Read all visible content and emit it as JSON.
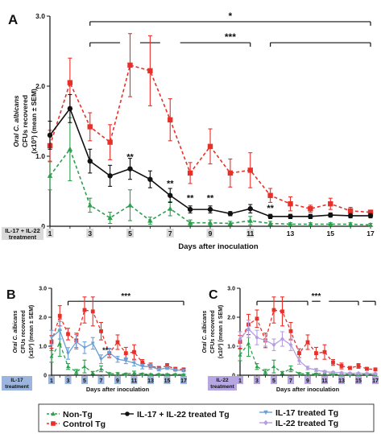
{
  "figure": {
    "legend": {
      "items": [
        {
          "label": "Non-Tg",
          "color": "#2e9e4f",
          "marker": "triangle",
          "dash": true
        },
        {
          "label": "Control Tg",
          "color": "#e8302a",
          "marker": "square",
          "dash": true
        },
        {
          "label": "IL-17 + IL-22 treated Tg",
          "color": "#111111",
          "marker": "circle",
          "dash": false
        },
        {
          "label": "IL-17 treated Tg",
          "color": "#6a9fd8",
          "marker": "triangle-down",
          "dash": false
        },
        {
          "label": "IL-22 treated Tg",
          "color": "#b49ee0",
          "marker": "diamond",
          "dash": false
        }
      ]
    }
  },
  "chart_data": [
    {
      "panel": "A",
      "type": "line",
      "ylabel_lines": [
        "Oral C. albicans",
        "CFUs recovered",
        "(x10³) (mean ± SEM)"
      ],
      "xlabel": "Days after inoculation",
      "x_ticks": [
        1,
        3,
        5,
        7,
        9,
        11,
        13,
        15,
        17
      ],
      "y_ticks": [
        "0",
        "1.0",
        "2.0",
        "3.0"
      ],
      "ylim": [
        0,
        3.0
      ],
      "xlim": [
        1,
        17
      ],
      "treatment_label_lines": [
        "IL-17 + IL-22",
        "treatment"
      ],
      "treatment_days": [
        1,
        3,
        5,
        7,
        9,
        11
      ],
      "significance": [
        {
          "label": "*",
          "from": 3,
          "to": 17,
          "level": 2.92
        },
        {
          "label": "***",
          "from": 3,
          "to": 17,
          "level": 2.62,
          "segments": [
            [
              3,
              4.5
            ],
            [
              5.5,
              6.5
            ],
            [
              7.5,
              11
            ],
            [
              12,
              17
            ]
          ]
        }
      ],
      "point_marks": [
        {
          "x": 5,
          "y": 0.95,
          "label": "**"
        },
        {
          "x": 7,
          "y": 0.57,
          "label": "**"
        },
        {
          "x": 8,
          "y": 0.36,
          "label": "**"
        },
        {
          "x": 9,
          "y": 0.36,
          "label": "**"
        },
        {
          "x": 12,
          "y": 0.22,
          "label": "**"
        }
      ],
      "x": [
        1,
        2,
        3,
        4,
        5,
        6,
        7,
        8,
        9,
        10,
        11,
        12,
        13,
        14,
        15,
        16,
        17
      ],
      "series": [
        {
          "name": "Non-Tg",
          "color": "#2e9e4f",
          "marker": "triangle",
          "dash": true,
          "values": [
            0.72,
            1.1,
            0.3,
            0.12,
            0.3,
            0.08,
            0.25,
            0.05,
            0.05,
            0.04,
            0.08,
            0.04,
            0.03,
            0.03,
            0.03,
            0.03,
            0.02
          ],
          "errors": [
            0.2,
            0.45,
            0.1,
            0.08,
            0.22,
            0.05,
            0.1,
            0.04,
            0.04,
            0.03,
            0.06,
            0.03,
            0.02,
            0.02,
            0.02,
            0.02,
            0.02
          ]
        },
        {
          "name": "Control Tg",
          "color": "#e8302a",
          "marker": "square",
          "dash": true,
          "values": [
            1.15,
            2.05,
            1.42,
            1.2,
            2.3,
            2.22,
            1.52,
            0.76,
            1.14,
            0.76,
            0.8,
            0.44,
            0.32,
            0.25,
            0.32,
            0.22,
            0.2
          ],
          "errors": [
            0.22,
            0.35,
            0.2,
            0.25,
            0.45,
            0.5,
            0.3,
            0.15,
            0.25,
            0.2,
            0.25,
            0.1,
            0.1,
            0.05,
            0.08,
            0.05,
            0.03
          ]
        },
        {
          "name": "IL-17 + IL-22 treated Tg",
          "color": "#111111",
          "marker": "circle",
          "dash": false,
          "values": [
            1.3,
            1.68,
            0.93,
            0.72,
            0.82,
            0.67,
            0.44,
            0.24,
            0.24,
            0.18,
            0.25,
            0.14,
            0.14,
            0.14,
            0.16,
            0.15,
            0.15
          ],
          "errors": [
            0.2,
            0.2,
            0.17,
            0.15,
            0.15,
            0.12,
            0.1,
            0.05,
            0.05,
            0.03,
            0.06,
            0.03,
            0.03,
            0.03,
            0.03,
            0.03,
            0.03
          ]
        }
      ]
    },
    {
      "panel": "B",
      "type": "line",
      "ylabel_lines": [
        "Oral C. albicans",
        "CFUs recovered",
        "(x10³) (mean ± SEM)"
      ],
      "xlabel": "Days after inoculation",
      "x_ticks": [
        1,
        3,
        5,
        7,
        9,
        11,
        13,
        15,
        17
      ],
      "y_ticks": [
        "0",
        "1.0",
        "2.0",
        "3.0"
      ],
      "ylim": [
        0,
        3.0
      ],
      "xlim": [
        1,
        17
      ],
      "treatment_label_lines": [
        "IL-17",
        "treatment"
      ],
      "treatment_days": [
        1,
        3,
        5,
        7,
        9,
        11,
        13,
        15,
        17
      ],
      "significance": [
        {
          "label": "***",
          "from": 3,
          "to": 17,
          "level": 2.55
        }
      ],
      "point_marks": [
        {
          "x": 7.5,
          "y": 0.78,
          "label": "**"
        }
      ],
      "x": [
        1,
        2,
        3,
        4,
        5,
        6,
        7,
        8,
        9,
        10,
        11,
        12,
        13,
        14,
        15,
        16,
        17
      ],
      "series": [
        {
          "name": "Non-Tg",
          "color": "#2e9e4f",
          "marker": "triangle",
          "dash": true,
          "values": [
            0.65,
            1.1,
            0.3,
            0.12,
            0.3,
            0.08,
            0.22,
            0.05,
            0.05,
            0.04,
            0.08,
            0.04,
            0.03,
            0.03,
            0.03,
            0.03,
            0.02
          ],
          "errors": [
            0.2,
            0.45,
            0.1,
            0.08,
            0.22,
            0.05,
            0.1,
            0.04,
            0.04,
            0.03,
            0.06,
            0.03,
            0.02,
            0.02,
            0.02,
            0.02,
            0.02
          ]
        },
        {
          "name": "Control Tg",
          "color": "#e8302a",
          "marker": "square",
          "dash": true,
          "values": [
            1.15,
            2.05,
            1.42,
            1.2,
            2.25,
            2.2,
            1.52,
            0.76,
            1.14,
            0.76,
            0.8,
            0.44,
            0.32,
            0.25,
            0.32,
            0.22,
            0.2
          ],
          "errors": [
            0.22,
            0.35,
            0.2,
            0.25,
            0.45,
            0.5,
            0.3,
            0.15,
            0.25,
            0.2,
            0.25,
            0.1,
            0.1,
            0.05,
            0.08,
            0.05,
            0.03
          ]
        },
        {
          "name": "IL-17 treated Tg",
          "color": "#6a9fd8",
          "marker": "triangle-down",
          "dash": false,
          "values": [
            1.3,
            1.55,
            0.75,
            1.15,
            0.95,
            1.1,
            0.55,
            0.78,
            0.55,
            0.5,
            0.42,
            0.3,
            0.3,
            0.2,
            0.25,
            0.18,
            0.16
          ],
          "errors": [
            0.25,
            0.3,
            0.2,
            0.25,
            0.2,
            0.2,
            0.15,
            0.15,
            0.1,
            0.1,
            0.1,
            0.08,
            0.08,
            0.05,
            0.05,
            0.04,
            0.04
          ]
        }
      ]
    },
    {
      "panel": "C",
      "type": "line",
      "ylabel_lines": [
        "Oral C. albicans",
        "CFUs recovered",
        "(x10³) (mean ± SEM)"
      ],
      "xlabel": "Days after inoculation",
      "x_ticks": [
        1,
        3,
        5,
        7,
        9,
        11,
        13,
        15,
        17
      ],
      "y_ticks": [
        "0",
        "1.0",
        "2.0",
        "3.0"
      ],
      "ylim": [
        0,
        3.0
      ],
      "xlim": [
        1,
        17
      ],
      "treatment_label_lines": [
        "IL-22",
        "treatment"
      ],
      "treatment_days": [
        1,
        3,
        5,
        7,
        9,
        11,
        13,
        15,
        17
      ],
      "significance": [
        {
          "label": "***",
          "from": 3,
          "to": 17,
          "level": 2.55,
          "segments": [
            [
              3,
              9
            ],
            [
              9.5,
              10.5
            ],
            [
              11.5,
              15
            ],
            [
              15.5,
              17
            ]
          ]
        }
      ],
      "point_marks": [],
      "x": [
        1,
        2,
        3,
        4,
        5,
        6,
        7,
        8,
        9,
        10,
        11,
        12,
        13,
        14,
        15,
        16,
        17
      ],
      "series": [
        {
          "name": "Non-Tg",
          "color": "#2e9e4f",
          "marker": "triangle",
          "dash": true,
          "values": [
            0.7,
            1.1,
            0.3,
            0.12,
            0.3,
            0.08,
            0.22,
            0.05,
            0.05,
            0.04,
            0.08,
            0.04,
            0.03,
            0.03,
            0.03,
            0.03,
            0.02
          ],
          "errors": [
            0.2,
            0.45,
            0.1,
            0.08,
            0.22,
            0.05,
            0.1,
            0.04,
            0.04,
            0.03,
            0.06,
            0.03,
            0.02,
            0.02,
            0.02,
            0.02,
            0.02
          ]
        },
        {
          "name": "Control Tg",
          "color": "#e8302a",
          "marker": "square",
          "dash": true,
          "values": [
            1.15,
            1.75,
            1.95,
            1.2,
            2.25,
            2.2,
            1.52,
            0.76,
            1.14,
            0.76,
            0.8,
            0.44,
            0.32,
            0.25,
            0.32,
            0.22,
            0.2
          ],
          "errors": [
            0.22,
            0.35,
            0.3,
            0.25,
            0.45,
            0.5,
            0.3,
            0.15,
            0.25,
            0.2,
            0.25,
            0.1,
            0.1,
            0.05,
            0.08,
            0.05,
            0.03
          ]
        },
        {
          "name": "IL-22 treated Tg",
          "color": "#b49ee0",
          "marker": "diamond",
          "dash": false,
          "values": [
            1.25,
            1.6,
            1.3,
            1.2,
            1.05,
            1.25,
            1.05,
            0.5,
            0.25,
            0.18,
            0.12,
            0.1,
            0.08,
            0.07,
            0.07,
            0.06,
            0.06
          ],
          "errors": [
            0.25,
            0.3,
            0.25,
            0.2,
            0.2,
            0.25,
            0.2,
            0.12,
            0.06,
            0.05,
            0.04,
            0.03,
            0.03,
            0.02,
            0.02,
            0.02,
            0.02
          ]
        }
      ]
    }
  ]
}
